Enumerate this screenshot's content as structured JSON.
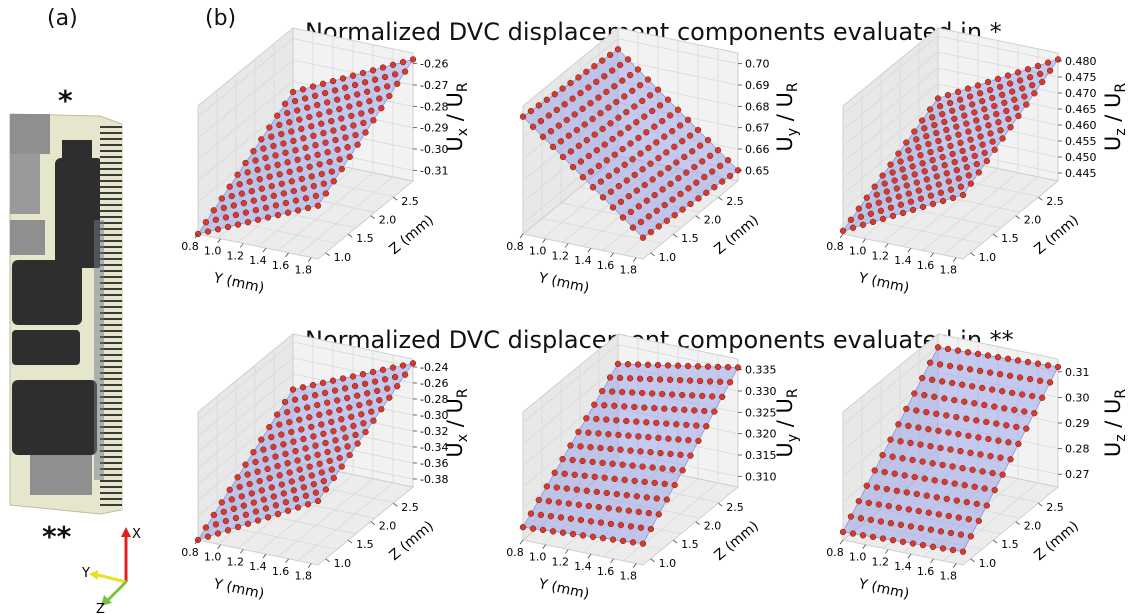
{
  "panels": {
    "a": "(a)",
    "b": "(b)"
  },
  "markers": {
    "top": "*",
    "bottom": "**"
  },
  "titles": {
    "row1": "Normalized DVC displacement components evaluated in *",
    "row2": "Normalized DVC displacement components evaluated in **"
  },
  "axes_triad": {
    "x": "X",
    "y": "Y",
    "z": "Z"
  },
  "colors": {
    "points": "#d93a2b",
    "surface": "#8c96e6",
    "specimen_light": "#e6e6cc",
    "specimen_dark": "#2e2e2e",
    "specimen_gray": "#8f8f8f"
  },
  "chart_data": [
    {
      "type": "scatter3d",
      "title": "",
      "row": 1,
      "component": "x",
      "xlabel": "Y (mm)",
      "ylabel": "Z (mm)",
      "zlabel_main": "U",
      "zlabel_sub": "x",
      "zlabel_rest": " / U",
      "zlabel_rest_sub": "R",
      "xticks": [
        "0.8",
        "1.0",
        "1.2",
        "1.4",
        "1.6",
        "1.8"
      ],
      "yticks": [
        "1.0",
        "1.5",
        "2.0",
        "2.5"
      ],
      "zticks": [
        "-0.26",
        "-0.27",
        "-0.28",
        "-0.29",
        "-0.30",
        "-0.31"
      ],
      "xlim": [
        0.8,
        1.85
      ],
      "ylim": [
        1.0,
        2.8
      ],
      "zlim": [
        -0.315,
        -0.255
      ],
      "surface": {
        "c00": -0.315,
        "c10": -0.29,
        "c01": -0.285,
        "c11": -0.258
      }
    },
    {
      "type": "scatter3d",
      "title": "",
      "row": 1,
      "component": "y",
      "xlabel": "Y (mm)",
      "ylabel": "Z (mm)",
      "zlabel_main": "U",
      "zlabel_sub": "y",
      "zlabel_rest": " / U",
      "zlabel_rest_sub": "R",
      "xticks": [
        "0.8",
        "1.0",
        "1.2",
        "1.4",
        "1.6",
        "1.8"
      ],
      "yticks": [
        "1.0",
        "1.5",
        "2.0",
        "2.5"
      ],
      "zticks": [
        "0.70",
        "0.69",
        "0.68",
        "0.67",
        "0.66",
        "0.65"
      ],
      "xlim": [
        0.8,
        1.85
      ],
      "ylim": [
        1.0,
        2.8
      ],
      "zlim": [
        0.645,
        0.705
      ],
      "surface": {
        "c00": 0.7,
        "c10": 0.655,
        "c01": 0.695,
        "c11": 0.65
      }
    },
    {
      "type": "scatter3d",
      "title": "",
      "row": 1,
      "component": "z",
      "xlabel": "Y (mm)",
      "ylabel": "Z (mm)",
      "zlabel_main": "U",
      "zlabel_sub": "z",
      "zlabel_rest": " / U",
      "zlabel_rest_sub": "R",
      "xticks": [
        "0.8",
        "1.0",
        "1.2",
        "1.4",
        "1.6",
        "1.8"
      ],
      "yticks": [
        "1.0",
        "1.5",
        "2.0",
        "2.5"
      ],
      "zticks": [
        "0.480",
        "0.475",
        "0.470",
        "0.465",
        "0.460",
        "0.455",
        "0.450",
        "0.445"
      ],
      "xlim": [
        0.8,
        1.85
      ],
      "ylim": [
        1.0,
        2.8
      ],
      "zlim": [
        0.442,
        0.482
      ],
      "surface": {
        "c00": 0.443,
        "c10": 0.462,
        "c01": 0.46,
        "c11": 0.48
      }
    },
    {
      "type": "scatter3d",
      "title": "",
      "row": 2,
      "component": "x",
      "xlabel": "Y (mm)",
      "ylabel": "Z (mm)",
      "zlabel_main": "U",
      "zlabel_sub": "x",
      "zlabel_rest": " / U",
      "zlabel_rest_sub": "R",
      "xticks": [
        "0.8",
        "1.0",
        "1.2",
        "1.4",
        "1.6",
        "1.8"
      ],
      "yticks": [
        "1.0",
        "1.5",
        "2.0",
        "2.5"
      ],
      "zticks": [
        "-0.24",
        "-0.26",
        "-0.28",
        "-0.30",
        "-0.32",
        "-0.34",
        "-0.36",
        "-0.38"
      ],
      "xlim": [
        0.8,
        1.85
      ],
      "ylim": [
        1.0,
        2.8
      ],
      "zlim": [
        -0.385,
        -0.235
      ],
      "surface": {
        "c00": -0.385,
        "c10": -0.31,
        "c01": -0.3,
        "c11": -0.24
      }
    },
    {
      "type": "scatter3d",
      "title": "",
      "row": 2,
      "component": "y",
      "xlabel": "Y (mm)",
      "ylabel": "Z (mm)",
      "zlabel_main": "U",
      "zlabel_sub": "y",
      "zlabel_rest": " / U",
      "zlabel_rest_sub": "R",
      "xticks": [
        "0.8",
        "1.0",
        "1.2",
        "1.4",
        "1.6",
        "1.8"
      ],
      "yticks": [
        "1.0",
        "1.5",
        "2.0",
        "2.5"
      ],
      "zticks": [
        "0.335",
        "0.330",
        "0.325",
        "0.320",
        "0.315",
        "0.310"
      ],
      "xlim": [
        0.8,
        1.85
      ],
      "ylim": [
        1.0,
        2.8
      ],
      "zlim": [
        0.307,
        0.337
      ],
      "surface": {
        "c00": 0.31,
        "c10": 0.312,
        "c01": 0.33,
        "c11": 0.335
      }
    },
    {
      "type": "scatter3d",
      "title": "",
      "row": 2,
      "component": "z",
      "xlabel": "Y (mm)",
      "ylabel": "Z (mm)",
      "zlabel_main": "U",
      "zlabel_sub": "z",
      "zlabel_rest": " / U",
      "zlabel_rest_sub": "R",
      "xticks": [
        "0.8",
        "1.0",
        "1.2",
        "1.4",
        "1.6",
        "1.8"
      ],
      "yticks": [
        "1.0",
        "1.5",
        "2.0",
        "2.5"
      ],
      "zticks": [
        "0.31",
        "0.30",
        "0.29",
        "0.28",
        "0.27"
      ],
      "xlim": [
        0.8,
        1.85
      ],
      "ylim": [
        1.0,
        2.8
      ],
      "zlim": [
        0.265,
        0.313
      ],
      "surface": {
        "c00": 0.268,
        "c10": 0.27,
        "c01": 0.308,
        "c11": 0.31
      }
    }
  ]
}
